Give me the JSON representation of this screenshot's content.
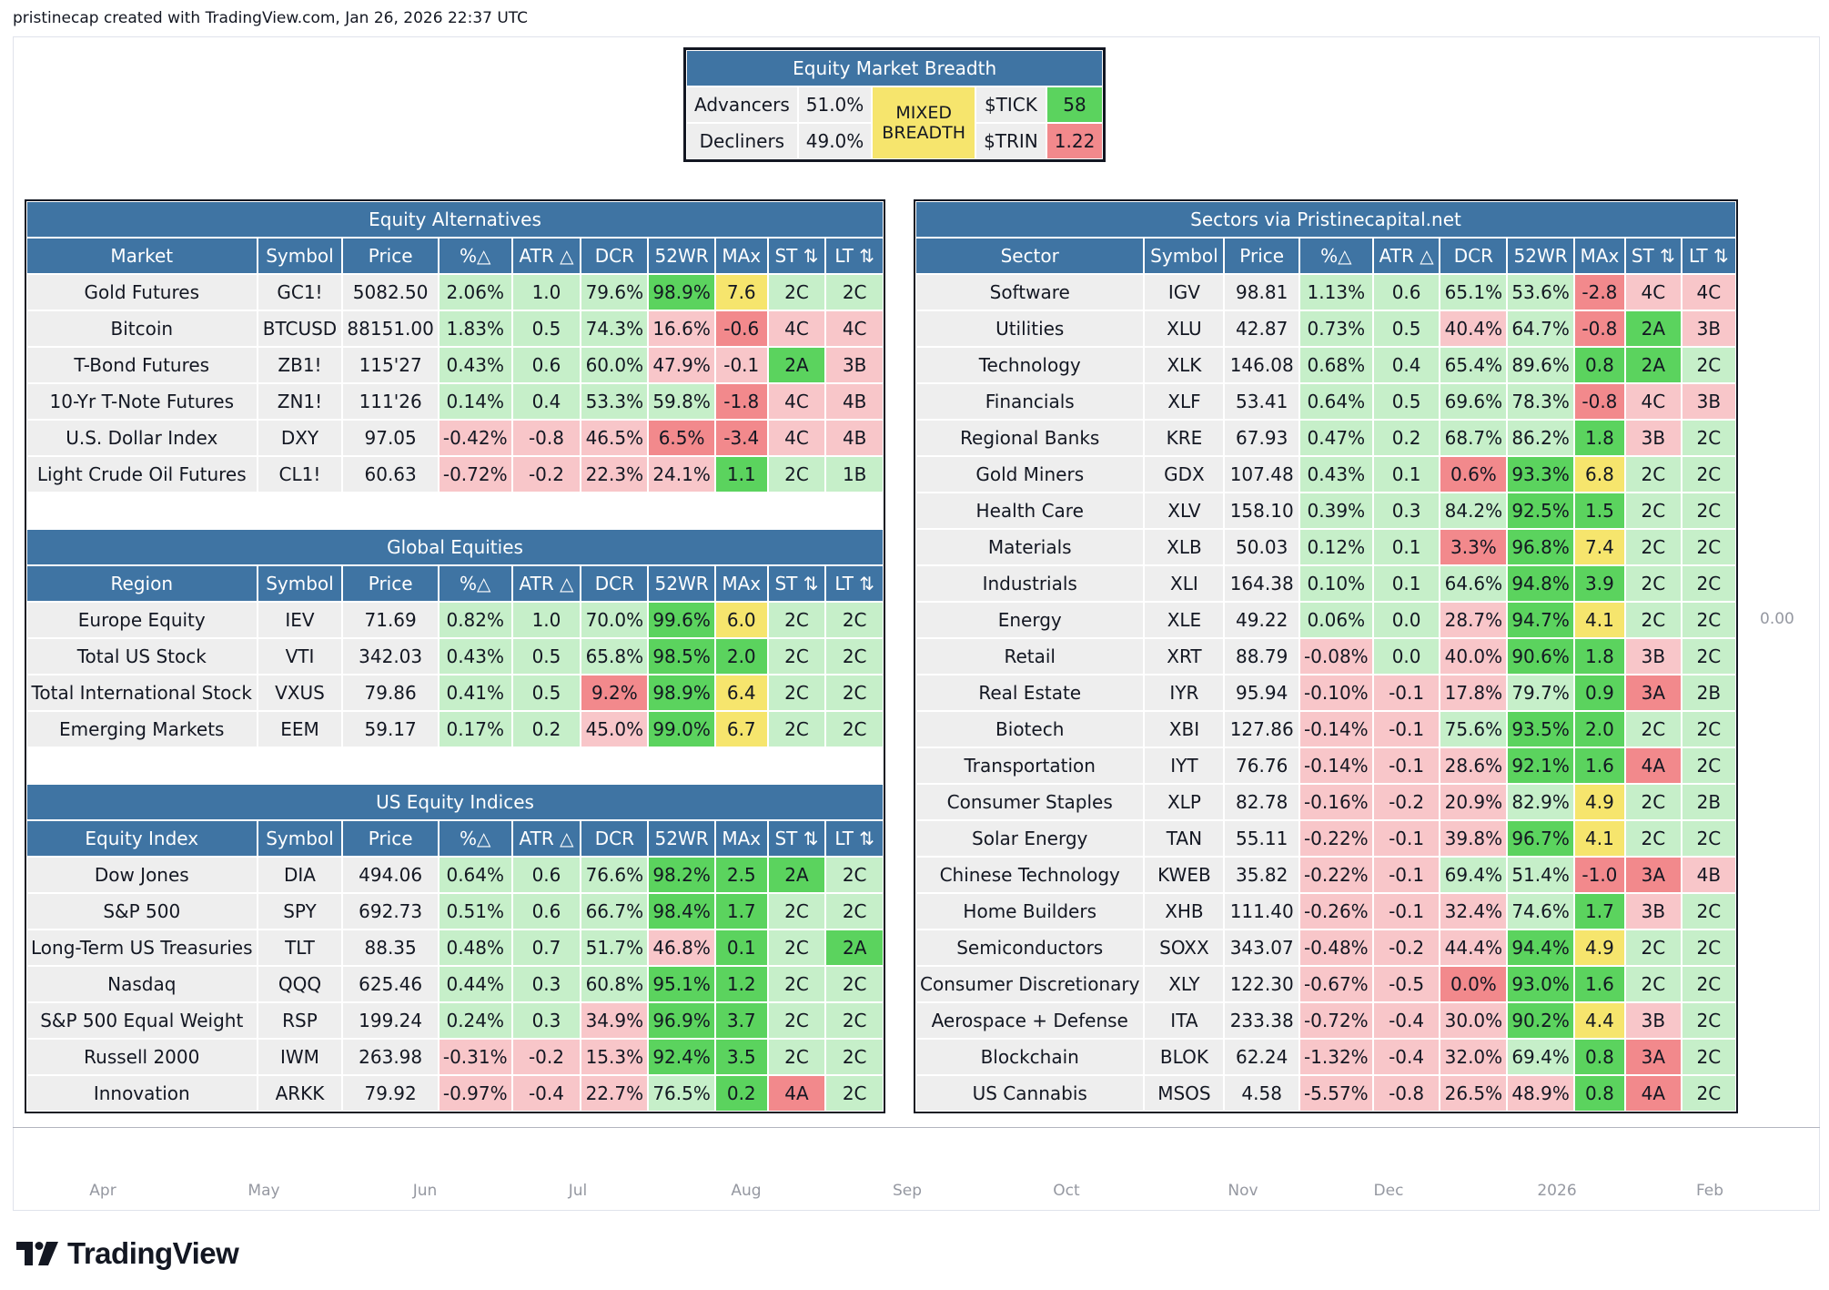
{
  "header": {
    "text": "pristinecap created with TradingView.com, Jan 26, 2026 22:37 UTC"
  },
  "breadth": {
    "title": "Equity Market Breadth",
    "advancers_label": "Advancers",
    "advancers_value": "51.0%",
    "decliners_label": "Decliners",
    "decliners_value": "49.0%",
    "status": "MIXED BREADTH",
    "tick_label": "$TICK",
    "tick_value": "58",
    "trin_label": "$TRIN",
    "trin_value": "1.22"
  },
  "columns": [
    "Symbol",
    "Price",
    "%△",
    "ATR △",
    "DCR",
    "52WR",
    "MAx",
    "ST ⇅",
    "LT ⇅"
  ],
  "left_sections": [
    {
      "title": "Equity Alternatives",
      "first_col": "Market",
      "rows": [
        {
          "name": "Gold Futures",
          "cells": [
            "GC1!",
            "5082.50",
            "2.06%",
            "1.0",
            "79.6%",
            "98.9%",
            "7.6",
            "2C",
            "2C"
          ],
          "colors": [
            "g0",
            "g0",
            "lg",
            "lg",
            "lg",
            "gr",
            "yl",
            "lg",
            "lg"
          ]
        },
        {
          "name": "Bitcoin",
          "cells": [
            "BTCUSD",
            "88151.00",
            "1.83%",
            "0.5",
            "74.3%",
            "16.6%",
            "-0.6",
            "4C",
            "4C"
          ],
          "colors": [
            "g0",
            "g0",
            "lg",
            "lg",
            "lg",
            "lr",
            "rd",
            "lr",
            "lr"
          ]
        },
        {
          "name": "T-Bond Futures",
          "cells": [
            "ZB1!",
            "115'27",
            "0.43%",
            "0.6",
            "60.0%",
            "47.9%",
            "-0.1",
            "2A",
            "3B"
          ],
          "colors": [
            "g0",
            "g0",
            "lg",
            "lg",
            "lg",
            "lr",
            "lr",
            "gr",
            "lr"
          ]
        },
        {
          "name": "10-Yr T-Note Futures",
          "cells": [
            "ZN1!",
            "111'26",
            "0.14%",
            "0.4",
            "53.3%",
            "59.8%",
            "-1.8",
            "4C",
            "4B"
          ],
          "colors": [
            "g0",
            "g0",
            "lg",
            "lg",
            "lg",
            "lg",
            "rd",
            "lr",
            "lr"
          ]
        },
        {
          "name": "U.S. Dollar Index",
          "cells": [
            "DXY",
            "97.05",
            "-0.42%",
            "-0.8",
            "46.5%",
            "6.5%",
            "-3.4",
            "4C",
            "4B"
          ],
          "colors": [
            "g0",
            "g0",
            "lr",
            "lr",
            "lr",
            "rd",
            "rd",
            "lr",
            "lr"
          ]
        },
        {
          "name": "Light Crude Oil Futures",
          "cells": [
            "CL1!",
            "60.63",
            "-0.72%",
            "-0.2",
            "22.3%",
            "24.1%",
            "1.1",
            "2C",
            "1B"
          ],
          "colors": [
            "g0",
            "g0",
            "lr",
            "lr",
            "lr",
            "lr",
            "gr",
            "lg",
            "lg"
          ]
        }
      ]
    },
    {
      "title": "Global Equities",
      "first_col": "Region",
      "rows": [
        {
          "name": "Europe Equity",
          "cells": [
            "IEV",
            "71.69",
            "0.82%",
            "1.0",
            "70.0%",
            "99.6%",
            "6.0",
            "2C",
            "2C"
          ],
          "colors": [
            "g0",
            "g0",
            "lg",
            "lg",
            "lg",
            "gr",
            "yl",
            "lg",
            "lg"
          ]
        },
        {
          "name": "Total US Stock",
          "cells": [
            "VTI",
            "342.03",
            "0.43%",
            "0.5",
            "65.8%",
            "98.5%",
            "2.0",
            "2C",
            "2C"
          ],
          "colors": [
            "g0",
            "g0",
            "lg",
            "lg",
            "lg",
            "gr",
            "gr",
            "lg",
            "lg"
          ]
        },
        {
          "name": "Total International Stock",
          "cells": [
            "VXUS",
            "79.86",
            "0.41%",
            "0.5",
            "9.2%",
            "98.9%",
            "6.4",
            "2C",
            "2C"
          ],
          "colors": [
            "g0",
            "g0",
            "lg",
            "lg",
            "rd",
            "gr",
            "yl",
            "lg",
            "lg"
          ]
        },
        {
          "name": "Emerging Markets",
          "cells": [
            "EEM",
            "59.17",
            "0.17%",
            "0.2",
            "45.0%",
            "99.0%",
            "6.7",
            "2C",
            "2C"
          ],
          "colors": [
            "g0",
            "g0",
            "lg",
            "lg",
            "lr",
            "gr",
            "yl",
            "lg",
            "lg"
          ]
        }
      ]
    },
    {
      "title": "US Equity Indices",
      "first_col": "Equity Index",
      "rows": [
        {
          "name": "Dow Jones",
          "cells": [
            "DIA",
            "494.06",
            "0.64%",
            "0.6",
            "76.6%",
            "98.2%",
            "2.5",
            "2A",
            "2C"
          ],
          "colors": [
            "g0",
            "g0",
            "lg",
            "lg",
            "lg",
            "gr",
            "gr",
            "gr",
            "lg"
          ]
        },
        {
          "name": "S&P 500",
          "cells": [
            "SPY",
            "692.73",
            "0.51%",
            "0.6",
            "66.7%",
            "98.4%",
            "1.7",
            "2C",
            "2C"
          ],
          "colors": [
            "g0",
            "g0",
            "lg",
            "lg",
            "lg",
            "gr",
            "gr",
            "lg",
            "lg"
          ]
        },
        {
          "name": "Long-Term US Treasuries",
          "cells": [
            "TLT",
            "88.35",
            "0.48%",
            "0.7",
            "51.7%",
            "46.8%",
            "0.1",
            "2C",
            "2A"
          ],
          "colors": [
            "g0",
            "g0",
            "lg",
            "lg",
            "lg",
            "lr",
            "gr",
            "lg",
            "gr"
          ]
        },
        {
          "name": "Nasdaq",
          "cells": [
            "QQQ",
            "625.46",
            "0.44%",
            "0.3",
            "60.8%",
            "95.1%",
            "1.2",
            "2C",
            "2C"
          ],
          "colors": [
            "g0",
            "g0",
            "lg",
            "lg",
            "lg",
            "gr",
            "gr",
            "lg",
            "lg"
          ]
        },
        {
          "name": "S&P 500 Equal Weight",
          "cells": [
            "RSP",
            "199.24",
            "0.24%",
            "0.3",
            "34.9%",
            "96.9%",
            "3.7",
            "2C",
            "2C"
          ],
          "colors": [
            "g0",
            "g0",
            "lg",
            "lg",
            "lr",
            "gr",
            "gr",
            "lg",
            "lg"
          ]
        },
        {
          "name": "Russell 2000",
          "cells": [
            "IWM",
            "263.98",
            "-0.31%",
            "-0.2",
            "15.3%",
            "92.4%",
            "3.5",
            "2C",
            "2C"
          ],
          "colors": [
            "g0",
            "g0",
            "lr",
            "lr",
            "lr",
            "gr",
            "gr",
            "lg",
            "lg"
          ]
        },
        {
          "name": "Innovation",
          "cells": [
            "ARKK",
            "79.92",
            "-0.97%",
            "-0.4",
            "22.7%",
            "76.5%",
            "0.2",
            "4A",
            "2C"
          ],
          "colors": [
            "g0",
            "g0",
            "lr",
            "lr",
            "lr",
            "lg",
            "gr",
            "rd",
            "lg"
          ]
        }
      ]
    }
  ],
  "right_section": {
    "title": "Sectors via Pristinecapital.net",
    "first_col": "Sector",
    "rows": [
      {
        "name": "Software",
        "cells": [
          "IGV",
          "98.81",
          "1.13%",
          "0.6",
          "65.1%",
          "53.6%",
          "-2.8",
          "4C",
          "4C"
        ],
        "colors": [
          "g0",
          "g0",
          "lg",
          "lg",
          "lg",
          "lg",
          "rd",
          "lr",
          "lr"
        ]
      },
      {
        "name": "Utilities",
        "cells": [
          "XLU",
          "42.87",
          "0.73%",
          "0.5",
          "40.4%",
          "64.7%",
          "-0.8",
          "2A",
          "3B"
        ],
        "colors": [
          "g0",
          "g0",
          "lg",
          "lg",
          "lr",
          "lg",
          "rd",
          "gr",
          "lr"
        ]
      },
      {
        "name": "Technology",
        "cells": [
          "XLK",
          "146.08",
          "0.68%",
          "0.4",
          "65.4%",
          "89.6%",
          "0.8",
          "2A",
          "2C"
        ],
        "colors": [
          "g0",
          "g0",
          "lg",
          "lg",
          "lg",
          "lg",
          "gr",
          "gr",
          "lg"
        ]
      },
      {
        "name": "Financials",
        "cells": [
          "XLF",
          "53.41",
          "0.64%",
          "0.5",
          "69.6%",
          "78.3%",
          "-0.8",
          "4C",
          "3B"
        ],
        "colors": [
          "g0",
          "g0",
          "lg",
          "lg",
          "lg",
          "lg",
          "rd",
          "lr",
          "lr"
        ]
      },
      {
        "name": "Regional Banks",
        "cells": [
          "KRE",
          "67.93",
          "0.47%",
          "0.2",
          "68.7%",
          "86.2%",
          "1.8",
          "3B",
          "2C"
        ],
        "colors": [
          "g0",
          "g0",
          "lg",
          "lg",
          "lg",
          "lg",
          "gr",
          "lr",
          "lg"
        ]
      },
      {
        "name": "Gold Miners",
        "cells": [
          "GDX",
          "107.48",
          "0.43%",
          "0.1",
          "0.6%",
          "93.3%",
          "6.8",
          "2C",
          "2C"
        ],
        "colors": [
          "g0",
          "g0",
          "lg",
          "lg",
          "rd",
          "gr",
          "yl",
          "lg",
          "lg"
        ]
      },
      {
        "name": "Health Care",
        "cells": [
          "XLV",
          "158.10",
          "0.39%",
          "0.3",
          "84.2%",
          "92.5%",
          "1.5",
          "2C",
          "2C"
        ],
        "colors": [
          "g0",
          "g0",
          "lg",
          "lg",
          "lg",
          "gr",
          "gr",
          "lg",
          "lg"
        ]
      },
      {
        "name": "Materials",
        "cells": [
          "XLB",
          "50.03",
          "0.12%",
          "0.1",
          "3.3%",
          "96.8%",
          "7.4",
          "2C",
          "2C"
        ],
        "colors": [
          "g0",
          "g0",
          "lg",
          "lg",
          "rd",
          "gr",
          "yl",
          "lg",
          "lg"
        ]
      },
      {
        "name": "Industrials",
        "cells": [
          "XLI",
          "164.38",
          "0.10%",
          "0.1",
          "64.6%",
          "94.8%",
          "3.9",
          "2C",
          "2C"
        ],
        "colors": [
          "g0",
          "g0",
          "lg",
          "lg",
          "lg",
          "gr",
          "gr",
          "lg",
          "lg"
        ]
      },
      {
        "name": "Energy",
        "cells": [
          "XLE",
          "49.22",
          "0.06%",
          "0.0",
          "28.7%",
          "94.7%",
          "4.1",
          "2C",
          "2C"
        ],
        "colors": [
          "g0",
          "g0",
          "lg",
          "lg",
          "lr",
          "gr",
          "yl",
          "lg",
          "lg"
        ]
      },
      {
        "name": "Retail",
        "cells": [
          "XRT",
          "88.79",
          "-0.08%",
          "0.0",
          "40.0%",
          "90.6%",
          "1.8",
          "3B",
          "2C"
        ],
        "colors": [
          "g0",
          "g0",
          "lr",
          "lg",
          "lr",
          "gr",
          "gr",
          "lr",
          "lg"
        ]
      },
      {
        "name": "Real Estate",
        "cells": [
          "IYR",
          "95.94",
          "-0.10%",
          "-0.1",
          "17.8%",
          "79.7%",
          "0.9",
          "3A",
          "2B"
        ],
        "colors": [
          "g0",
          "g0",
          "lr",
          "lr",
          "lr",
          "lg",
          "gr",
          "rd",
          "lg"
        ]
      },
      {
        "name": "Biotech",
        "cells": [
          "XBI",
          "127.86",
          "-0.14%",
          "-0.1",
          "75.6%",
          "93.5%",
          "2.0",
          "2C",
          "2C"
        ],
        "colors": [
          "g0",
          "g0",
          "lr",
          "lr",
          "lg",
          "gr",
          "gr",
          "lg",
          "lg"
        ]
      },
      {
        "name": "Transportation",
        "cells": [
          "IYT",
          "76.76",
          "-0.14%",
          "-0.1",
          "28.6%",
          "92.1%",
          "1.6",
          "4A",
          "2C"
        ],
        "colors": [
          "g0",
          "g0",
          "lr",
          "lr",
          "lr",
          "gr",
          "gr",
          "rd",
          "lg"
        ]
      },
      {
        "name": "Consumer Staples",
        "cells": [
          "XLP",
          "82.78",
          "-0.16%",
          "-0.2",
          "20.9%",
          "82.9%",
          "4.9",
          "2C",
          "2B"
        ],
        "colors": [
          "g0",
          "g0",
          "lr",
          "lr",
          "lr",
          "lg",
          "yl",
          "lg",
          "lg"
        ]
      },
      {
        "name": "Solar Energy",
        "cells": [
          "TAN",
          "55.11",
          "-0.22%",
          "-0.1",
          "39.8%",
          "96.7%",
          "4.1",
          "2C",
          "2C"
        ],
        "colors": [
          "g0",
          "g0",
          "lr",
          "lr",
          "lr",
          "gr",
          "yl",
          "lg",
          "lg"
        ]
      },
      {
        "name": "Chinese Technology",
        "cells": [
          "KWEB",
          "35.82",
          "-0.22%",
          "-0.1",
          "69.4%",
          "51.4%",
          "-1.0",
          "3A",
          "4B"
        ],
        "colors": [
          "g0",
          "g0",
          "lr",
          "lr",
          "lg",
          "lg",
          "rd",
          "rd",
          "lr"
        ]
      },
      {
        "name": "Home Builders",
        "cells": [
          "XHB",
          "111.40",
          "-0.26%",
          "-0.1",
          "32.4%",
          "74.6%",
          "1.7",
          "3B",
          "2C"
        ],
        "colors": [
          "g0",
          "g0",
          "lr",
          "lr",
          "lr",
          "lg",
          "gr",
          "lr",
          "lg"
        ]
      },
      {
        "name": "Semiconductors",
        "cells": [
          "SOXX",
          "343.07",
          "-0.48%",
          "-0.2",
          "44.4%",
          "94.4%",
          "4.9",
          "2C",
          "2C"
        ],
        "colors": [
          "g0",
          "g0",
          "lr",
          "lr",
          "lr",
          "gr",
          "yl",
          "lg",
          "lg"
        ]
      },
      {
        "name": "Consumer Discretionary",
        "cells": [
          "XLY",
          "122.30",
          "-0.67%",
          "-0.5",
          "0.0%",
          "93.0%",
          "1.6",
          "2C",
          "2C"
        ],
        "colors": [
          "g0",
          "g0",
          "lr",
          "lr",
          "rd",
          "gr",
          "gr",
          "lg",
          "lg"
        ]
      },
      {
        "name": "Aerospace + Defense",
        "cells": [
          "ITA",
          "233.38",
          "-0.72%",
          "-0.4",
          "30.0%",
          "90.2%",
          "4.4",
          "3B",
          "2C"
        ],
        "colors": [
          "g0",
          "g0",
          "lr",
          "lr",
          "lr",
          "gr",
          "yl",
          "lr",
          "lg"
        ]
      },
      {
        "name": "Blockchain",
        "cells": [
          "BLOK",
          "62.24",
          "-1.32%",
          "-0.4",
          "32.0%",
          "69.4%",
          "0.8",
          "3A",
          "2C"
        ],
        "colors": [
          "g0",
          "g0",
          "lr",
          "lr",
          "lr",
          "lg",
          "gr",
          "rd",
          "lg"
        ]
      },
      {
        "name": "US Cannabis",
        "cells": [
          "MSOS",
          "4.58",
          "-5.57%",
          "-0.8",
          "26.5%",
          "48.9%",
          "0.8",
          "4A",
          "2C"
        ],
        "colors": [
          "g0",
          "g0",
          "lr",
          "lr",
          "lr",
          "lr",
          "gr",
          "rd",
          "lg"
        ]
      }
    ]
  },
  "price_axis_label": "0.00",
  "months": [
    "Apr",
    "May",
    "Jun",
    "Jul",
    "Aug",
    "Sep",
    "Oct",
    "Nov",
    "Dec",
    "2026",
    "Feb"
  ],
  "brand": "TradingView"
}
